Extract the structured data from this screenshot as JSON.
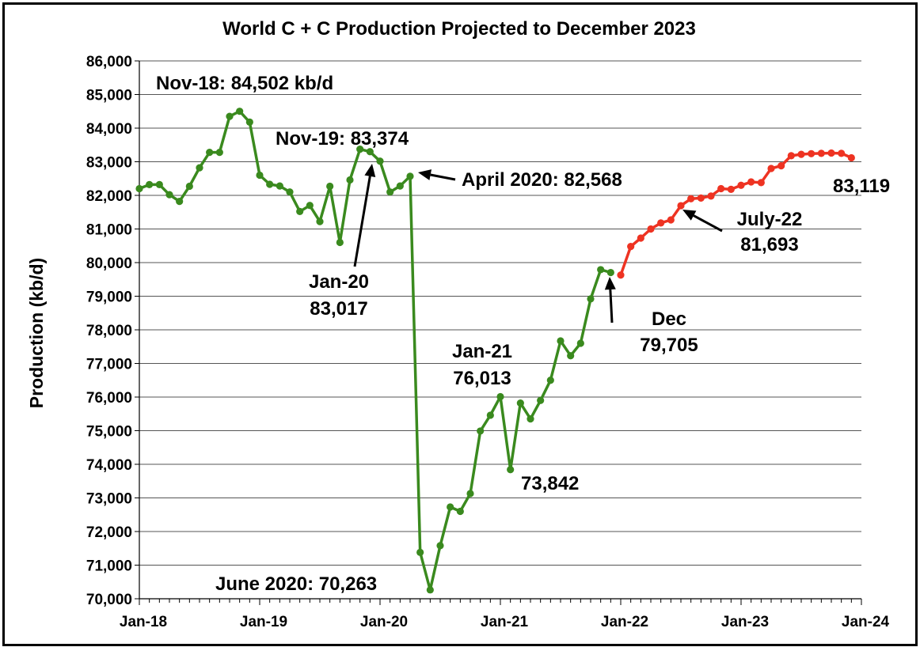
{
  "chart_data": {
    "type": "line",
    "title": "World C + C Production Projected to December 2023",
    "xlabel": "",
    "ylabel": "Production (kb/d)",
    "ylim": [
      70000,
      86000
    ],
    "grid": "horizontal",
    "y_ticks": [
      "70,000",
      "71,000",
      "72,000",
      "73,000",
      "74,000",
      "75,000",
      "76,000",
      "77,000",
      "78,000",
      "79,000",
      "80,000",
      "81,000",
      "82,000",
      "83,000",
      "84,000",
      "85,000",
      "86,000"
    ],
    "x_ticks": [
      "Jan-18",
      "Jan-19",
      "Jan-20",
      "Jan-21",
      "Jan-22",
      "Jan-23",
      "Jan-24"
    ],
    "colors": {
      "historical": "#3a8a1e",
      "projected": "#ee3322",
      "grid": "#555555"
    },
    "series": [
      {
        "role": "historical",
        "start": "Jan-18",
        "values": [
          82200,
          82320,
          82320,
          82020,
          81820,
          82270,
          82820,
          83280,
          83280,
          84350,
          84502,
          84180,
          82600,
          82330,
          82280,
          82100,
          81520,
          81700,
          81220,
          82270,
          80600,
          82460,
          83374,
          83300,
          83017,
          82100,
          82280,
          82568,
          71380,
          70263,
          71580,
          72730,
          72600,
          73130,
          74990,
          75460,
          76013,
          73842,
          75820,
          75350,
          75900,
          76500,
          77670,
          77230,
          77600,
          78920,
          79790,
          79705
        ]
      },
      {
        "role": "projected",
        "start": "Jan-22",
        "values": [
          79630,
          80480,
          80730,
          81000,
          81180,
          81270,
          81693,
          81900,
          81920,
          81980,
          82200,
          82180,
          82300,
          82400,
          82380,
          82800,
          82880,
          83180,
          83220,
          83240,
          83250,
          83260,
          83250,
          83119
        ]
      }
    ],
    "annotations": [
      {
        "text": "Nov-18: 84,502 kb/d"
      },
      {
        "text": "Nov-19: 83,374"
      },
      {
        "text": "April 2020: 82,568"
      },
      {
        "text": "Jan-20",
        "text2": "83,017"
      },
      {
        "text": "Jan-21",
        "text2": "76,013"
      },
      {
        "text": "73,842"
      },
      {
        "text": "June 2020: 70,263"
      },
      {
        "text": "Dec",
        "text2": "79,705"
      },
      {
        "text": "July-22",
        "text2": "81,693"
      },
      {
        "text": "83,119"
      }
    ]
  }
}
